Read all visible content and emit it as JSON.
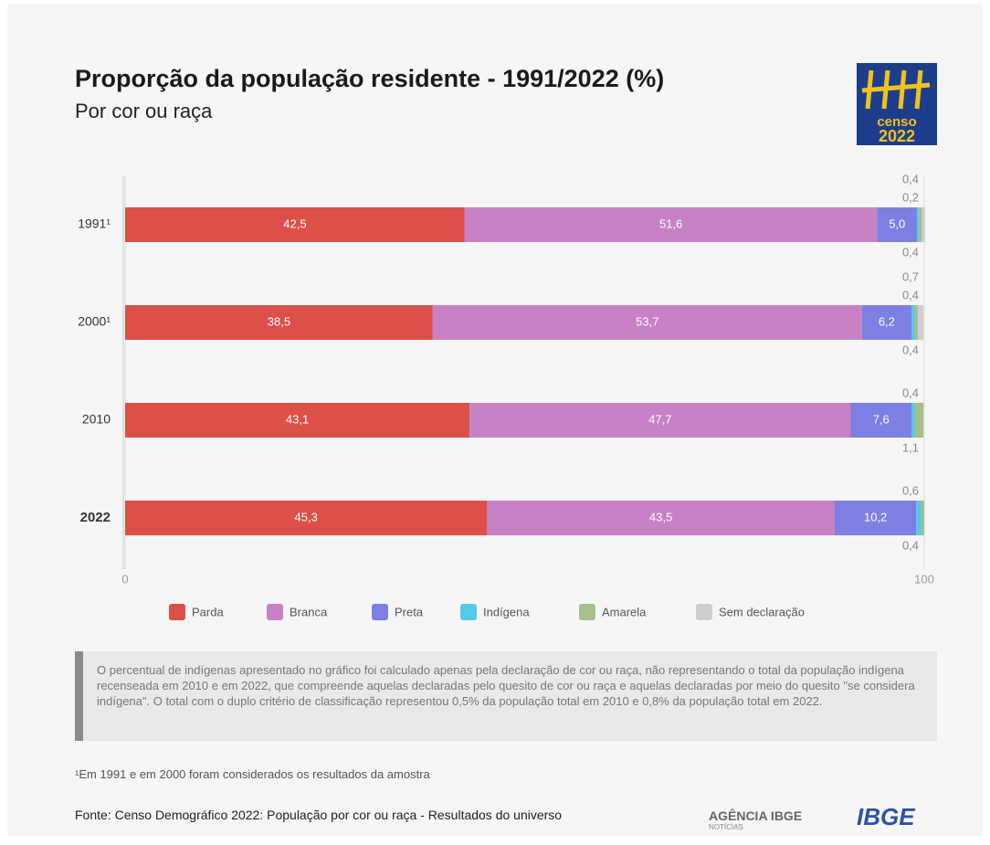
{
  "chart_data": {
    "type": "stacked_barh",
    "title": "Proporção da população residente - 1991/2022 (%)",
    "subtitle": "Por cor ou raça",
    "categories": [
      "1991¹",
      "2000¹",
      "2010",
      "2022"
    ],
    "series": [
      {
        "name": "Parda",
        "color": "#dc5049",
        "values": [
          42.5,
          38.5,
          43.1,
          45.3
        ],
        "value_labels": [
          "42,5",
          "38,5",
          "43,1",
          "45,3"
        ]
      },
      {
        "name": "Branca",
        "color": "#c981c5",
        "values": [
          51.6,
          53.7,
          47.7,
          43.5
        ],
        "value_labels": [
          "51,6",
          "53,7",
          "47,7",
          "43,5"
        ]
      },
      {
        "name": "Preta",
        "color": "#7d7fe2",
        "values": [
          5.0,
          6.2,
          7.6,
          10.2
        ],
        "value_labels": [
          "5,0",
          "6,2",
          "7,6",
          "10,2"
        ]
      },
      {
        "name": "Indígena",
        "color": "#56c9ea",
        "values": [
          0.2,
          0.4,
          0.4,
          0.6
        ],
        "value_labels": [
          "0,2",
          "0,4",
          "0,4",
          "0,6"
        ]
      },
      {
        "name": "Amarela",
        "color": "#a5c08b",
        "values": [
          0.4,
          0.4,
          1.1,
          0.4
        ],
        "value_labels": [
          "0,4",
          "0,4",
          "1,1",
          "0,4"
        ]
      },
      {
        "name": "Sem declaração",
        "color": "#cfcfcf",
        "values": [
          0.4,
          0.7,
          null,
          null
        ],
        "value_labels": [
          "0,4",
          "0,7",
          null,
          null
        ]
      }
    ],
    "xlim": [
      0,
      100
    ],
    "xticks": [
      0,
      100
    ]
  },
  "note": "O percentual de indígenas apresentado no gráfico foi calculado apenas pela declaração de cor ou raça, não representando o total da população indígena recenseada em 2010 e em 2022, que compreende aquelas declaradas pelo quesito de cor ou raça e aquelas declaradas por meio do quesito \"se considera indígena\". O total com o duplo critério de classificação representou 0,5% da população total em 2010 e 0,8% da população total em 2022.",
  "footnote": "¹Em 1991 e em 2000 foram considerados os resultados da amostra",
  "source": "Fonte: Censo Demográfico 2022: População por cor ou raça - Resultados do universo",
  "logo": {
    "censo": "censo",
    "year": "2022"
  },
  "footer_logos": {
    "agencia": "AGÊNCIA IBGE",
    "noticias": "NOTÍCIAS",
    "ibge": "IBGE"
  }
}
